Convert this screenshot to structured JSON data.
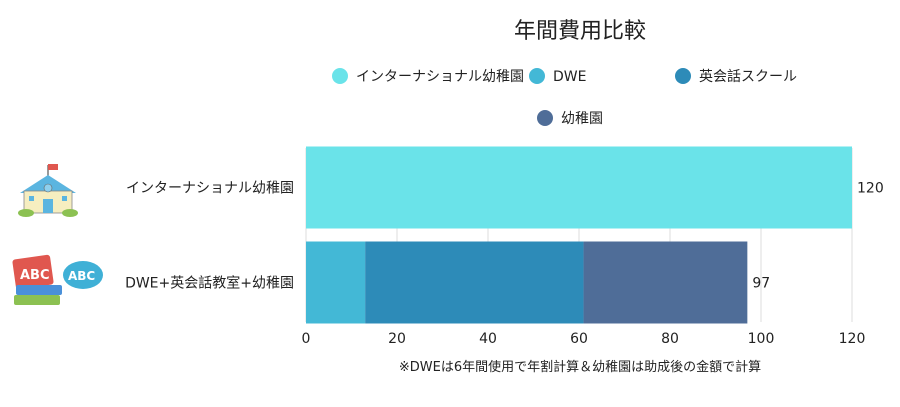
{
  "chart_data": {
    "type": "bar",
    "orientation": "horizontal",
    "stacked": true,
    "title": "年間費用比較",
    "categories": [
      "インターナショナル幼稚園",
      "DWE+英会話教室+幼稚園"
    ],
    "category_icons": [
      "school-building-icon",
      "abc-books-speech-icon"
    ],
    "series": [
      {
        "name": "インターナショナル幼稚園",
        "color": "#6AE3E9",
        "values": [
          120,
          0
        ]
      },
      {
        "name": "DWE",
        "color": "#43B8D6",
        "values": [
          0,
          13
        ]
      },
      {
        "name": "英会話スクール",
        "color": "#2D8BB8",
        "values": [
          0,
          48
        ]
      },
      {
        "name": "幼稚園",
        "color": "#4F6D98",
        "values": [
          0,
          36
        ]
      }
    ],
    "totals": [
      "120",
      "97"
    ],
    "xlim": [
      0,
      120
    ],
    "xticks": [
      "0",
      "20",
      "40",
      "60",
      "80",
      "100",
      "120"
    ],
    "grid": true,
    "legend_position": "top",
    "note": "※DWEは6年間使用で年割計算＆幼稚園は助成後の金額で計算"
  }
}
